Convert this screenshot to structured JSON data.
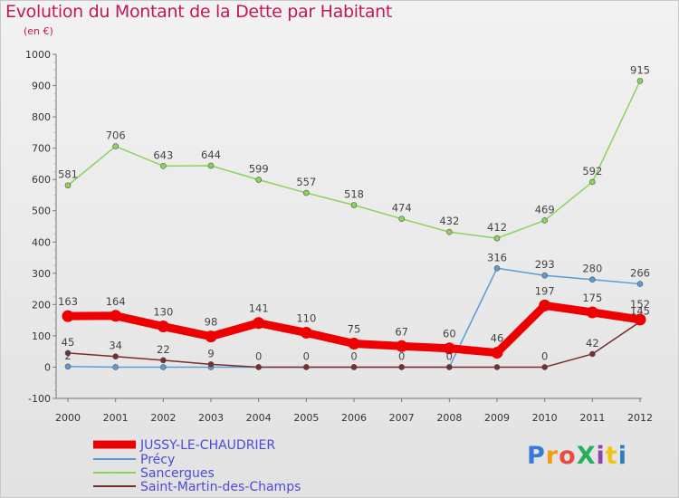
{
  "title": "Evolution du Montant de la Dette par Habitant",
  "subtitle": "(en €)",
  "logo": {
    "text": "ProXiti",
    "colors": [
      "#3a7bd5",
      "#f39c12",
      "#e74c3c",
      "#27ae60",
      "#8e44ad",
      "#f1c40f",
      "#2980b9"
    ]
  },
  "chart_data": {
    "type": "line",
    "x": [
      "2000",
      "2001",
      "2002",
      "2003",
      "2004",
      "2005",
      "2006",
      "2007",
      "2008",
      "2009",
      "2010",
      "2011",
      "2012"
    ],
    "ylim": [
      -100,
      1000
    ],
    "yticks": [
      "-100",
      "0",
      "100",
      "200",
      "300",
      "400",
      "500",
      "600",
      "700",
      "800",
      "900",
      "1000"
    ],
    "grid": false,
    "legend_position": "bottom-left",
    "series": [
      {
        "name": "JUSSY-LE-CHAUDRIER",
        "color": "#ee0000",
        "values": [
          163,
          164,
          130,
          98,
          141,
          110,
          75,
          67,
          60,
          46,
          197,
          175,
          152
        ],
        "labels": [
          "163",
          "164",
          "130",
          "98",
          "141",
          "110",
          "75",
          "67",
          "60",
          "46",
          "197",
          "175",
          "152"
        ]
      },
      {
        "name": "Précy",
        "color": "#5b9bd5",
        "values": [
          2,
          0,
          0,
          0,
          0,
          0,
          0,
          0,
          0,
          316,
          293,
          280,
          266
        ],
        "labels": [
          "2",
          "",
          "",
          "",
          "",
          "",
          "",
          "",
          "",
          "316",
          "293",
          "280",
          "266"
        ]
      },
      {
        "name": "Sancergues",
        "color": "#8bd35a",
        "values": [
          581,
          706,
          643,
          644,
          599,
          557,
          518,
          474,
          432,
          412,
          469,
          592,
          915
        ],
        "labels": [
          "581",
          "706",
          "643",
          "644",
          "599",
          "557",
          "518",
          "474",
          "432",
          "412",
          "469",
          "592",
          "915"
        ]
      },
      {
        "name": "Saint-Martin-des-Champs",
        "color": "#7a2b2b",
        "values": [
          45,
          34,
          22,
          9,
          0,
          0,
          0,
          0,
          0,
          0,
          0,
          42,
          145
        ],
        "labels": [
          "45",
          "34",
          "22",
          "9",
          "0",
          "0",
          "0",
          "0",
          "0",
          "",
          "0",
          "42",
          "145"
        ]
      }
    ]
  }
}
